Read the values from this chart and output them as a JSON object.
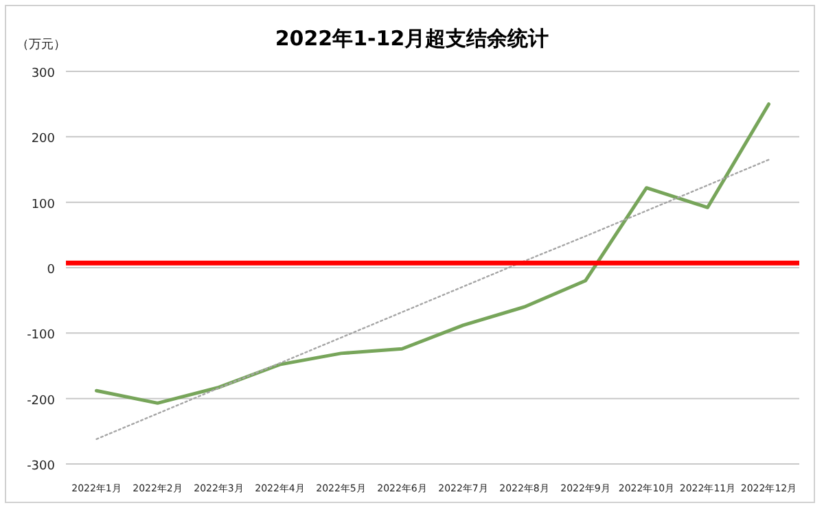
{
  "chart_data": {
    "type": "line",
    "title": "2022年1-12月超支结余统计",
    "ylabel": "（万元）",
    "categories": [
      "2022年1月",
      "2022年2月",
      "2022年3月",
      "2022年4月",
      "2022年5月",
      "2022年6月",
      "2022年7月",
      "2022年8月",
      "2022年9月",
      "2022年10月",
      "2022年11月",
      "2022年12月"
    ],
    "series": [
      {
        "color": "#77a55a",
        "values": [
          -188,
          -207,
          -183,
          -148,
          -131,
          -124,
          -88,
          -60,
          -20,
          122,
          92,
          250
        ]
      },
      {
        "color": "#a6a6a6",
        "line_style": "dotted",
        "values": [
          -262,
          -223,
          -184,
          -146,
          -107,
          -68,
          -29,
          10,
          48,
          87,
          126,
          165
        ]
      }
    ],
    "ref_lines": [
      {
        "axis": "y",
        "value": 7,
        "color": "#ff0000"
      }
    ],
    "ylim": [
      -300,
      300
    ],
    "yticks": [
      -300,
      -200,
      -100,
      0,
      100,
      200,
      300
    ],
    "grid": "y",
    "marker": "none"
  }
}
